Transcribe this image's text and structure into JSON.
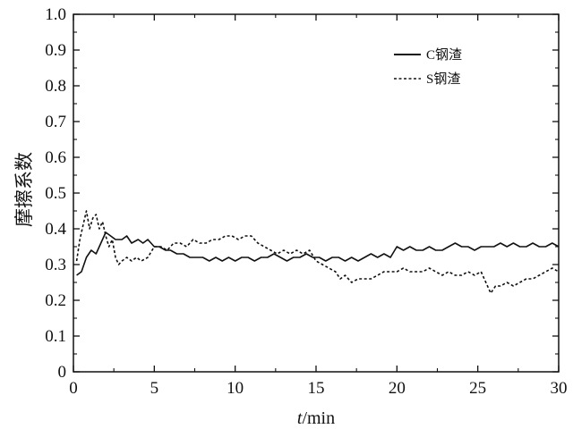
{
  "chart_data": {
    "type": "line",
    "title": "",
    "xlabel_italic": "t",
    "xlabel_rest": "/min",
    "ylabel": "摩擦系数",
    "xlim": [
      0,
      30
    ],
    "ylim": [
      0,
      1.0
    ],
    "x_ticks": [
      0,
      5,
      10,
      15,
      20,
      25,
      30
    ],
    "y_ticks": [
      0,
      0.1,
      0.2,
      0.3,
      0.4,
      0.5,
      0.6,
      0.7,
      0.8,
      0.9,
      1.0
    ],
    "x_tick_labels": [
      "0",
      "5",
      "10",
      "15",
      "20",
      "25",
      "30"
    ],
    "y_tick_labels": [
      "0",
      "0.1",
      "0.2",
      "0.3",
      "0.4",
      "0.5",
      "0.6",
      "0.7",
      "0.8",
      "0.9",
      "1.0"
    ],
    "grid": false,
    "legend_position": "top-right",
    "series": [
      {
        "name": "C钢渣",
        "style": "solid",
        "color": "#111111",
        "points": [
          [
            0.2,
            0.27
          ],
          [
            0.5,
            0.28
          ],
          [
            0.8,
            0.32
          ],
          [
            1.1,
            0.34
          ],
          [
            1.4,
            0.33
          ],
          [
            1.7,
            0.36
          ],
          [
            2.0,
            0.39
          ],
          [
            2.3,
            0.38
          ],
          [
            2.6,
            0.37
          ],
          [
            3.0,
            0.37
          ],
          [
            3.3,
            0.38
          ],
          [
            3.6,
            0.36
          ],
          [
            4.0,
            0.37
          ],
          [
            4.3,
            0.36
          ],
          [
            4.6,
            0.37
          ],
          [
            5.0,
            0.35
          ],
          [
            5.3,
            0.35
          ],
          [
            5.7,
            0.34
          ],
          [
            6.0,
            0.34
          ],
          [
            6.4,
            0.33
          ],
          [
            6.8,
            0.33
          ],
          [
            7.2,
            0.32
          ],
          [
            7.6,
            0.32
          ],
          [
            8.0,
            0.32
          ],
          [
            8.4,
            0.31
          ],
          [
            8.8,
            0.32
          ],
          [
            9.2,
            0.31
          ],
          [
            9.6,
            0.32
          ],
          [
            10.0,
            0.31
          ],
          [
            10.4,
            0.32
          ],
          [
            10.8,
            0.32
          ],
          [
            11.2,
            0.31
          ],
          [
            11.6,
            0.32
          ],
          [
            12.0,
            0.32
          ],
          [
            12.4,
            0.33
          ],
          [
            12.8,
            0.32
          ],
          [
            13.2,
            0.31
          ],
          [
            13.6,
            0.32
          ],
          [
            14.0,
            0.32
          ],
          [
            14.4,
            0.33
          ],
          [
            14.8,
            0.32
          ],
          [
            15.2,
            0.32
          ],
          [
            15.6,
            0.31
          ],
          [
            16.0,
            0.32
          ],
          [
            16.4,
            0.32
          ],
          [
            16.8,
            0.31
          ],
          [
            17.2,
            0.32
          ],
          [
            17.6,
            0.31
          ],
          [
            18.0,
            0.32
          ],
          [
            18.4,
            0.33
          ],
          [
            18.8,
            0.32
          ],
          [
            19.2,
            0.33
          ],
          [
            19.6,
            0.32
          ],
          [
            20.0,
            0.35
          ],
          [
            20.4,
            0.34
          ],
          [
            20.8,
            0.35
          ],
          [
            21.2,
            0.34
          ],
          [
            21.6,
            0.34
          ],
          [
            22.0,
            0.35
          ],
          [
            22.4,
            0.34
          ],
          [
            22.8,
            0.34
          ],
          [
            23.2,
            0.35
          ],
          [
            23.6,
            0.36
          ],
          [
            24.0,
            0.35
          ],
          [
            24.4,
            0.35
          ],
          [
            24.8,
            0.34
          ],
          [
            25.2,
            0.35
          ],
          [
            25.6,
            0.35
          ],
          [
            26.0,
            0.35
          ],
          [
            26.4,
            0.36
          ],
          [
            26.8,
            0.35
          ],
          [
            27.2,
            0.36
          ],
          [
            27.6,
            0.35
          ],
          [
            28.0,
            0.35
          ],
          [
            28.4,
            0.36
          ],
          [
            28.8,
            0.35
          ],
          [
            29.2,
            0.35
          ],
          [
            29.6,
            0.36
          ],
          [
            30.0,
            0.35
          ]
        ]
      },
      {
        "name": "S钢渣",
        "style": "dashed",
        "color": "#111111",
        "points": [
          [
            0.2,
            0.31
          ],
          [
            0.4,
            0.37
          ],
          [
            0.6,
            0.41
          ],
          [
            0.8,
            0.45
          ],
          [
            1.0,
            0.4
          ],
          [
            1.2,
            0.43
          ],
          [
            1.4,
            0.44
          ],
          [
            1.6,
            0.4
          ],
          [
            1.8,
            0.42
          ],
          [
            2.0,
            0.38
          ],
          [
            2.2,
            0.35
          ],
          [
            2.4,
            0.37
          ],
          [
            2.6,
            0.32
          ],
          [
            2.8,
            0.3
          ],
          [
            3.0,
            0.31
          ],
          [
            3.3,
            0.32
          ],
          [
            3.6,
            0.31
          ],
          [
            3.9,
            0.32
          ],
          [
            4.2,
            0.31
          ],
          [
            4.6,
            0.32
          ],
          [
            5.0,
            0.35
          ],
          [
            5.4,
            0.35
          ],
          [
            5.8,
            0.34
          ],
          [
            6.2,
            0.36
          ],
          [
            6.6,
            0.36
          ],
          [
            7.0,
            0.35
          ],
          [
            7.4,
            0.37
          ],
          [
            7.8,
            0.36
          ],
          [
            8.2,
            0.36
          ],
          [
            8.6,
            0.37
          ],
          [
            9.0,
            0.37
          ],
          [
            9.4,
            0.38
          ],
          [
            9.8,
            0.38
          ],
          [
            10.2,
            0.37
          ],
          [
            10.6,
            0.38
          ],
          [
            11.0,
            0.38
          ],
          [
            11.4,
            0.36
          ],
          [
            11.8,
            0.35
          ],
          [
            12.2,
            0.34
          ],
          [
            12.6,
            0.33
          ],
          [
            13.0,
            0.34
          ],
          [
            13.4,
            0.33
          ],
          [
            13.8,
            0.34
          ],
          [
            14.2,
            0.33
          ],
          [
            14.6,
            0.34
          ],
          [
            15.0,
            0.31
          ],
          [
            15.4,
            0.3
          ],
          [
            15.8,
            0.29
          ],
          [
            16.2,
            0.28
          ],
          [
            16.5,
            0.26
          ],
          [
            16.8,
            0.27
          ],
          [
            17.2,
            0.25
          ],
          [
            17.6,
            0.26
          ],
          [
            18.0,
            0.26
          ],
          [
            18.4,
            0.26
          ],
          [
            18.8,
            0.27
          ],
          [
            19.2,
            0.28
          ],
          [
            19.6,
            0.28
          ],
          [
            20.0,
            0.28
          ],
          [
            20.4,
            0.29
          ],
          [
            20.8,
            0.28
          ],
          [
            21.2,
            0.28
          ],
          [
            21.6,
            0.28
          ],
          [
            22.0,
            0.29
          ],
          [
            22.4,
            0.28
          ],
          [
            22.8,
            0.27
          ],
          [
            23.2,
            0.28
          ],
          [
            23.6,
            0.27
          ],
          [
            24.0,
            0.27
          ],
          [
            24.4,
            0.28
          ],
          [
            24.8,
            0.27
          ],
          [
            25.2,
            0.28
          ],
          [
            25.5,
            0.25
          ],
          [
            25.8,
            0.22
          ],
          [
            26.1,
            0.24
          ],
          [
            26.4,
            0.24
          ],
          [
            26.8,
            0.25
          ],
          [
            27.2,
            0.24
          ],
          [
            27.6,
            0.25
          ],
          [
            28.0,
            0.26
          ],
          [
            28.4,
            0.26
          ],
          [
            28.8,
            0.27
          ],
          [
            29.2,
            0.28
          ],
          [
            29.6,
            0.29
          ],
          [
            30.0,
            0.28
          ]
        ]
      }
    ]
  }
}
